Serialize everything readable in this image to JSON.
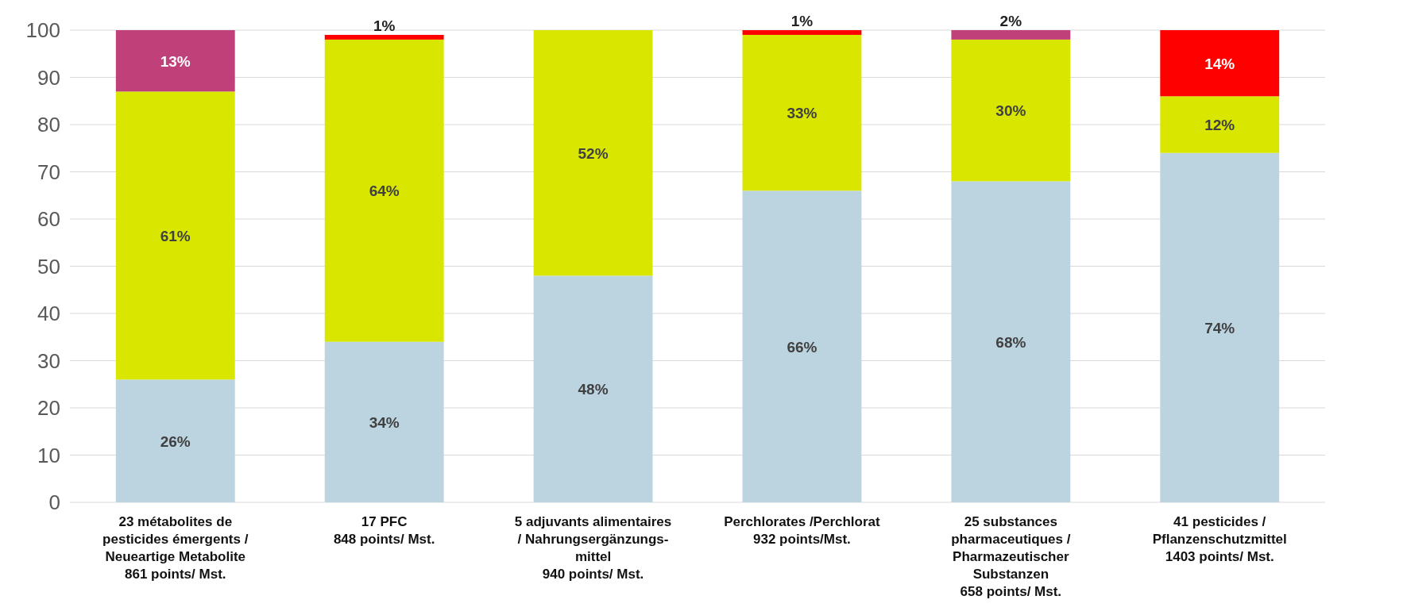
{
  "chart_data": {
    "type": "bar",
    "stacked": true,
    "grid": "y",
    "categories": [
      "23 métabolites de\npesticides émergents /\nNeueartige Metabolite\n861 points/ Mst.",
      "17 PFC\n848 points/ Mst.",
      "5 adjuvants alimentaires\n/ Nahrungsergänzungs-\nmittel\n940 points/ Mst.",
      "Perchlorates /Perchlorat\n932 points/Mst.",
      "25 substances\npharmaceutiques /\nPharmazeutischer\nSubstanzen\n658 points/ Mst.",
      "41 pesticides /\nPflanzenschutzmittel\n1403 points/ Mst."
    ],
    "ylim": [
      0,
      100
    ],
    "yticks": [
      0,
      10,
      20,
      30,
      40,
      50,
      60,
      70,
      80,
      90,
      100
    ],
    "series": [
      {
        "color": "#bcd3e0",
        "values": [
          26,
          34,
          48,
          66,
          68,
          74
        ],
        "value_labels": [
          "26%",
          "34%",
          "48%",
          "66%",
          "68%",
          "74%"
        ]
      },
      {
        "color": "#d8e600",
        "values": [
          61,
          64,
          52,
          33,
          30,
          12
        ],
        "value_labels": [
          "61%",
          "64%",
          "52%",
          "33%",
          "30%",
          "12%"
        ]
      },
      {
        "color": "#c0417a",
        "values": [
          13,
          null,
          null,
          null,
          2,
          null
        ],
        "value_labels": [
          "13%",
          null,
          null,
          null,
          "2%",
          null
        ]
      },
      {
        "color": "#ff0000",
        "values": [
          null,
          1,
          null,
          1,
          null,
          14
        ],
        "value_labels": [
          null,
          "1%",
          null,
          "1%",
          null,
          "14%"
        ]
      }
    ]
  }
}
